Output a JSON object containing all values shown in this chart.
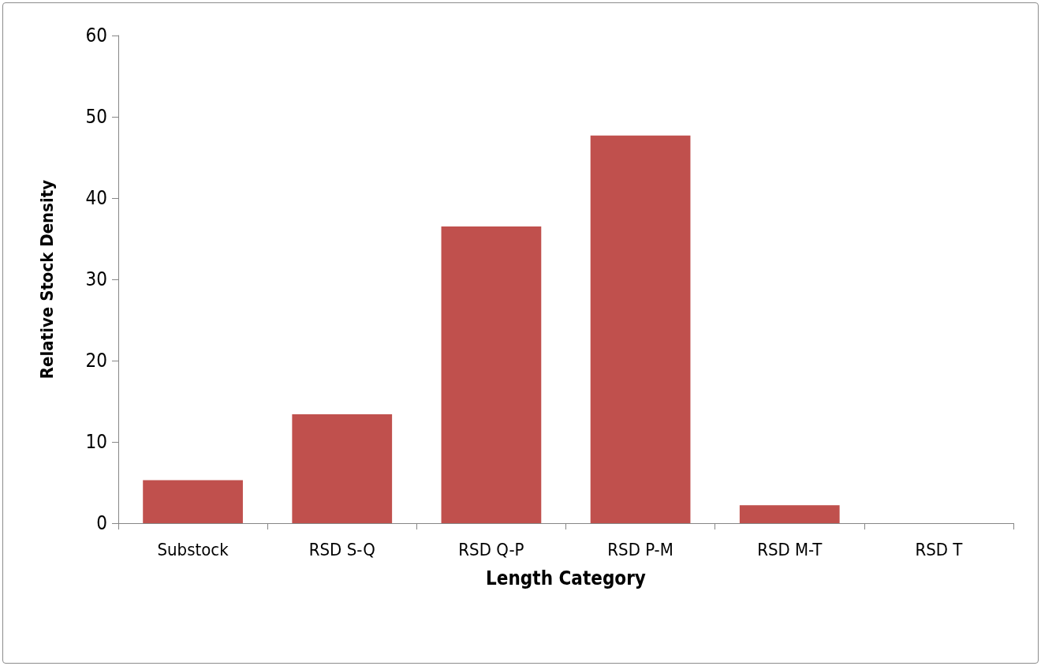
{
  "chart_data": {
    "type": "bar",
    "xlabel": "Length Category",
    "ylabel": "Relative Stock Density",
    "categories": [
      "Substock",
      "RSD S-Q",
      "RSD Q-P",
      "RSD P-M",
      "RSD M-T",
      "RSD T"
    ],
    "series": [
      {
        "color": "#c0504d",
        "values": [
          5.3,
          13.4,
          36.5,
          47.7,
          2.2,
          0
        ]
      }
    ],
    "ylim": [
      0,
      60
    ],
    "yticks": [
      0,
      10,
      20,
      30,
      40,
      50,
      60
    ],
    "grid": false
  }
}
